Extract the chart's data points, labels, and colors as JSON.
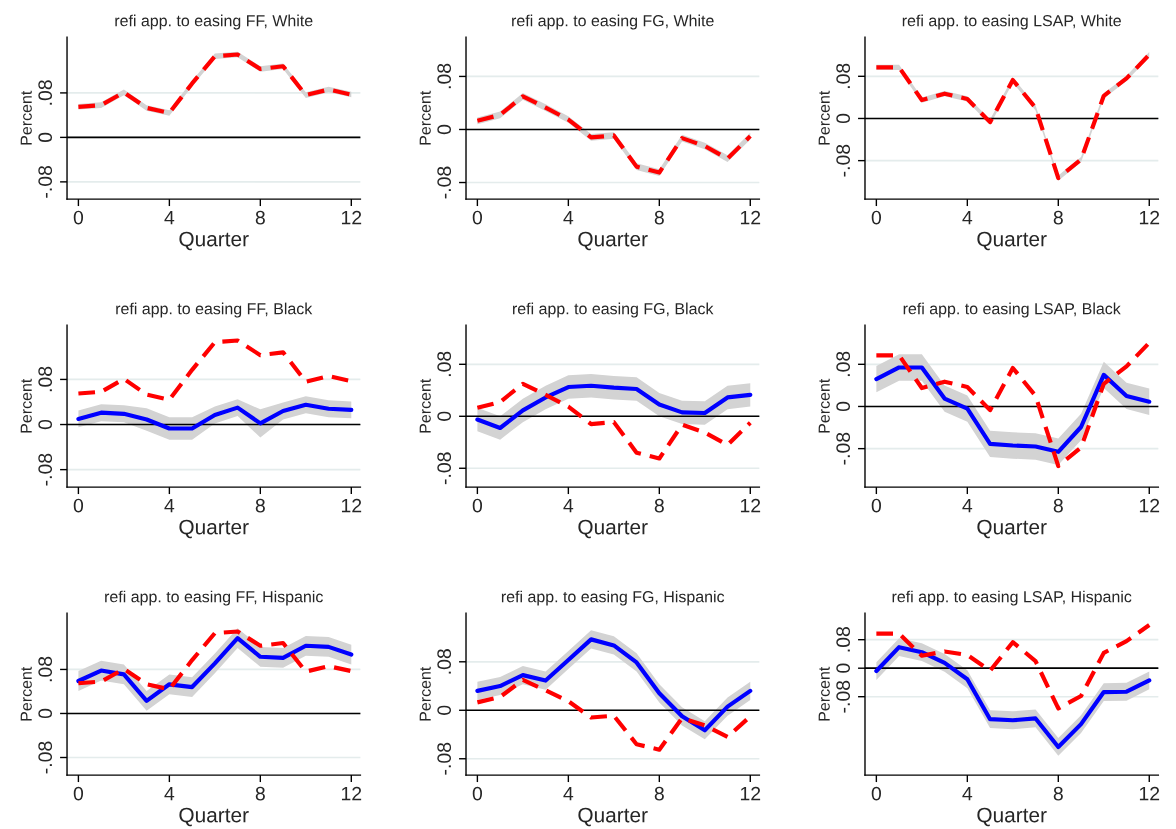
{
  "chart_data": [
    {
      "type": "line",
      "title": "refi app. to easing FF, White",
      "xlabel": "Quarter",
      "ylabel": "Percent",
      "x": [
        0,
        1,
        2,
        3,
        4,
        5,
        6,
        7,
        8,
        9,
        10,
        11,
        12
      ],
      "xlim": [
        -0.5,
        12.4
      ],
      "xticks": [
        0,
        4,
        8,
        12
      ],
      "ylim": [
        -0.111,
        0.18
      ],
      "yticks": [
        {
          "value": -0.08,
          "label": "-.08"
        },
        {
          "value": 0,
          "label": "0"
        },
        {
          "value": 0.08,
          "label": ".08"
        }
      ],
      "grid": "y",
      "legend": false,
      "ref_lines": [
        {
          "axis": "y",
          "value": 0,
          "color": "#000000"
        }
      ],
      "series": [
        {
          "color": "#ff0000",
          "line_style": "dashed",
          "values": [
            0.055,
            0.058,
            0.081,
            0.053,
            0.044,
            0.097,
            0.146,
            0.149,
            0.123,
            0.128,
            0.076,
            0.086,
            0.077
          ],
          "lower": [
            0.05,
            0.053,
            0.076,
            0.048,
            0.039,
            0.092,
            0.141,
            0.144,
            0.118,
            0.123,
            0.071,
            0.081,
            0.072
          ],
          "upper": [
            0.06,
            0.063,
            0.086,
            0.058,
            0.049,
            0.102,
            0.151,
            0.154,
            0.128,
            0.133,
            0.081,
            0.091,
            0.082
          ]
        }
      ]
    },
    {
      "type": "line",
      "title": "refi app. to easing FG, White",
      "xlabel": "Quarter",
      "ylabel": "Percent",
      "x": [
        0,
        1,
        2,
        3,
        4,
        5,
        6,
        7,
        8,
        9,
        10,
        11,
        12
      ],
      "xlim": [
        -0.5,
        12.4
      ],
      "xticks": [
        0,
        4,
        8,
        12
      ],
      "ylim": [
        -0.105,
        0.139
      ],
      "yticks": [
        {
          "value": -0.08,
          "label": "-.08"
        },
        {
          "value": 0,
          "label": "0"
        },
        {
          "value": 0.08,
          "label": ".08"
        }
      ],
      "grid": "y",
      "legend": false,
      "ref_lines": [
        {
          "axis": "y",
          "value": 0,
          "color": "#000000"
        }
      ],
      "series": [
        {
          "color": "#ff0000",
          "line_style": "dashed",
          "values": [
            0.013,
            0.022,
            0.05,
            0.033,
            0.015,
            -0.012,
            -0.009,
            -0.056,
            -0.065,
            -0.013,
            -0.025,
            -0.044,
            -0.01
          ],
          "lower": [
            0.008,
            0.017,
            0.045,
            0.028,
            0.01,
            -0.017,
            -0.014,
            -0.061,
            -0.07,
            -0.018,
            -0.03,
            -0.049,
            -0.015
          ],
          "upper": [
            0.018,
            0.027,
            0.055,
            0.038,
            0.02,
            -0.007,
            -0.004,
            -0.051,
            -0.06,
            -0.008,
            -0.02,
            -0.039,
            -0.005
          ]
        }
      ]
    },
    {
      "type": "line",
      "title": "refi app. to easing LSAP, White",
      "xlabel": "Quarter",
      "ylabel": "Percent",
      "x": [
        0,
        1,
        2,
        3,
        4,
        5,
        6,
        7,
        8,
        9,
        10,
        11,
        12
      ],
      "xlim": [
        -0.5,
        12.4
      ],
      "xticks": [
        0,
        4,
        8,
        12
      ],
      "ylim": [
        -0.153,
        0.154
      ],
      "yticks": [
        {
          "value": -0.08,
          "label": "-.08"
        },
        {
          "value": 0,
          "label": "0"
        },
        {
          "value": 0.08,
          "label": ".08"
        }
      ],
      "grid": "y",
      "legend": false,
      "ref_lines": [
        {
          "axis": "y",
          "value": 0,
          "color": "#000000"
        }
      ],
      "series": [
        {
          "color": "#ff0000",
          "line_style": "dashed",
          "values": [
            0.097,
            0.097,
            0.035,
            0.047,
            0.037,
            -0.007,
            0.073,
            0.02,
            -0.113,
            -0.078,
            0.043,
            0.076,
            0.121
          ],
          "lower": [
            0.092,
            0.092,
            0.03,
            0.042,
            0.032,
            -0.012,
            0.068,
            0.015,
            -0.118,
            -0.083,
            0.038,
            0.071,
            0.116
          ],
          "upper": [
            0.102,
            0.102,
            0.04,
            0.052,
            0.042,
            -0.002,
            0.078,
            0.025,
            -0.108,
            -0.073,
            0.048,
            0.081,
            0.126
          ]
        }
      ]
    },
    {
      "type": "line",
      "title": "refi app. to easing FF, Black",
      "xlabel": "Quarter",
      "ylabel": "Percent",
      "x": [
        0,
        1,
        2,
        3,
        4,
        5,
        6,
        7,
        8,
        9,
        10,
        11,
        12
      ],
      "xlim": [
        -0.5,
        12.4
      ],
      "xticks": [
        0,
        4,
        8,
        12
      ],
      "ylim": [
        -0.111,
        0.176
      ],
      "yticks": [
        {
          "value": -0.08,
          "label": "-.08"
        },
        {
          "value": 0,
          "label": "0"
        },
        {
          "value": 0.08,
          "label": ".08"
        }
      ],
      "grid": "y",
      "legend": false,
      "ref_lines": [
        {
          "axis": "y",
          "value": 0,
          "color": "#000000"
        }
      ],
      "series": [
        {
          "color": "#0000ff",
          "line_style": "solid",
          "values": [
            0.01,
            0.021,
            0.019,
            0.009,
            -0.007,
            -0.007,
            0.017,
            0.03,
            0.002,
            0.024,
            0.035,
            0.028,
            0.026
          ],
          "lower": [
            -0.005,
            0.006,
            0.004,
            -0.011,
            -0.027,
            -0.027,
            0.002,
            0.015,
            -0.023,
            0.009,
            0.02,
            0.013,
            0.011
          ],
          "upper": [
            0.025,
            0.036,
            0.034,
            0.029,
            0.013,
            0.013,
            0.032,
            0.045,
            0.027,
            0.039,
            0.05,
            0.043,
            0.041
          ]
        },
        {
          "color": "#ff0000",
          "line_style": "dashed",
          "values": [
            0.055,
            0.058,
            0.081,
            0.053,
            0.044,
            0.097,
            0.146,
            0.149,
            0.123,
            0.128,
            0.076,
            0.086,
            0.077
          ]
        }
      ]
    },
    {
      "type": "line",
      "title": "refi app. to easing FG, Black",
      "xlabel": "Quarter",
      "ylabel": "Percent",
      "x": [
        0,
        1,
        2,
        3,
        4,
        5,
        6,
        7,
        8,
        9,
        10,
        11,
        12
      ],
      "xlim": [
        -0.5,
        12.4
      ],
      "xticks": [
        0,
        4,
        8,
        12
      ],
      "ylim": [
        -0.109,
        0.14
      ],
      "yticks": [
        {
          "value": -0.08,
          "label": "-.08"
        },
        {
          "value": 0,
          "label": "0"
        },
        {
          "value": 0.08,
          "label": ".08"
        }
      ],
      "grid": "y",
      "legend": false,
      "ref_lines": [
        {
          "axis": "y",
          "value": 0,
          "color": "#000000"
        }
      ],
      "series": [
        {
          "color": "#0000ff",
          "line_style": "solid",
          "values": [
            -0.005,
            -0.018,
            0.009,
            0.029,
            0.045,
            0.047,
            0.044,
            0.042,
            0.018,
            0.006,
            0.005,
            0.029,
            0.033
          ],
          "lower": [
            -0.023,
            -0.036,
            -0.009,
            0.011,
            0.027,
            0.029,
            0.026,
            0.024,
            0.0,
            -0.012,
            -0.013,
            0.011,
            0.015
          ],
          "upper": [
            0.013,
            0.0,
            0.027,
            0.047,
            0.063,
            0.065,
            0.062,
            0.06,
            0.036,
            0.024,
            0.023,
            0.047,
            0.051
          ]
        },
        {
          "color": "#ff0000",
          "line_style": "dashed",
          "values": [
            0.013,
            0.022,
            0.05,
            0.033,
            0.015,
            -0.012,
            -0.009,
            -0.056,
            -0.065,
            -0.013,
            -0.025,
            -0.044,
            -0.01
          ]
        }
      ]
    },
    {
      "type": "line",
      "title": "refi app. to easing LSAP, Black",
      "xlabel": "Quarter",
      "ylabel": "Percent",
      "x": [
        0,
        1,
        2,
        3,
        4,
        5,
        6,
        7,
        8,
        9,
        10,
        11,
        12
      ],
      "xlim": [
        -0.5,
        12.4
      ],
      "xticks": [
        0,
        4,
        8,
        12
      ],
      "ylim": [
        -0.153,
        0.154
      ],
      "yticks": [
        {
          "value": -0.08,
          "label": "-.08"
        },
        {
          "value": 0,
          "label": "0"
        },
        {
          "value": 0.08,
          "label": ".08"
        }
      ],
      "grid": "y",
      "legend": false,
      "ref_lines": [
        {
          "axis": "y",
          "value": 0,
          "color": "#000000"
        }
      ],
      "series": [
        {
          "color": "#0000ff",
          "line_style": "solid",
          "values": [
            0.052,
            0.074,
            0.074,
            0.015,
            -0.004,
            -0.071,
            -0.074,
            -0.076,
            -0.086,
            -0.039,
            0.06,
            0.02,
            0.009
          ],
          "lower": [
            0.027,
            0.049,
            0.049,
            -0.01,
            -0.029,
            -0.096,
            -0.099,
            -0.101,
            -0.111,
            -0.064,
            0.035,
            -0.005,
            -0.016
          ],
          "upper": [
            0.077,
            0.099,
            0.099,
            0.04,
            0.021,
            -0.046,
            -0.049,
            -0.051,
            -0.061,
            -0.014,
            0.085,
            0.045,
            0.034
          ]
        },
        {
          "color": "#ff0000",
          "line_style": "dashed",
          "values": [
            0.097,
            0.097,
            0.035,
            0.047,
            0.037,
            -0.007,
            0.073,
            0.02,
            -0.113,
            -0.078,
            0.043,
            0.076,
            0.121
          ]
        }
      ]
    },
    {
      "type": "line",
      "title": "refi app. to easing FF, Hispanic",
      "xlabel": "Quarter",
      "ylabel": "Percent",
      "x": [
        0,
        1,
        2,
        3,
        4,
        5,
        6,
        7,
        8,
        9,
        10,
        11,
        12
      ],
      "xlim": [
        -0.5,
        12.4
      ],
      "xticks": [
        0,
        4,
        8,
        12
      ],
      "ylim": [
        -0.112,
        0.182
      ],
      "yticks": [
        {
          "value": -0.08,
          "label": "-.08"
        },
        {
          "value": 0,
          "label": "0"
        },
        {
          "value": 0.08,
          "label": ".08"
        }
      ],
      "grid": "y",
      "legend": false,
      "ref_lines": [
        {
          "axis": "y",
          "value": 0,
          "color": "#000000"
        }
      ],
      "series": [
        {
          "color": "#0000ff",
          "line_style": "solid",
          "values": [
            0.059,
            0.078,
            0.071,
            0.023,
            0.053,
            0.048,
            0.091,
            0.137,
            0.103,
            0.101,
            0.123,
            0.121,
            0.107
          ],
          "lower": [
            0.041,
            0.06,
            0.053,
            0.005,
            0.035,
            0.03,
            0.073,
            0.119,
            0.085,
            0.083,
            0.105,
            0.103,
            0.089
          ],
          "upper": [
            0.077,
            0.096,
            0.089,
            0.041,
            0.071,
            0.066,
            0.109,
            0.155,
            0.121,
            0.119,
            0.141,
            0.139,
            0.125
          ]
        },
        {
          "color": "#ff0000",
          "line_style": "dashed",
          "values": [
            0.055,
            0.058,
            0.081,
            0.053,
            0.044,
            0.097,
            0.146,
            0.149,
            0.123,
            0.128,
            0.076,
            0.086,
            0.077
          ]
        }
      ]
    },
    {
      "type": "line",
      "title": "refi app. to easing FG, Hispanic",
      "xlabel": "Quarter",
      "ylabel": "Percent",
      "x": [
        0,
        1,
        2,
        3,
        4,
        5,
        6,
        7,
        8,
        9,
        10,
        11,
        12
      ],
      "xlim": [
        -0.5,
        12.4
      ],
      "xticks": [
        0,
        4,
        8,
        12
      ],
      "ylim": [
        -0.107,
        0.16
      ],
      "yticks": [
        {
          "value": -0.08,
          "label": "-.08"
        },
        {
          "value": 0,
          "label": "0"
        },
        {
          "value": 0.08,
          "label": ".08"
        }
      ],
      "grid": "y",
      "legend": false,
      "ref_lines": [
        {
          "axis": "y",
          "value": 0,
          "color": "#000000"
        }
      ],
      "series": [
        {
          "color": "#0000ff",
          "line_style": "solid",
          "values": [
            0.032,
            0.04,
            0.058,
            0.049,
            0.083,
            0.117,
            0.107,
            0.079,
            0.028,
            -0.01,
            -0.033,
            0.006,
            0.032
          ],
          "lower": [
            0.017,
            0.025,
            0.043,
            0.034,
            0.068,
            0.102,
            0.092,
            0.064,
            0.013,
            -0.025,
            -0.048,
            -0.009,
            0.017
          ],
          "upper": [
            0.047,
            0.055,
            0.073,
            0.064,
            0.098,
            0.132,
            0.122,
            0.094,
            0.043,
            0.005,
            -0.018,
            0.021,
            0.047
          ]
        },
        {
          "color": "#ff0000",
          "line_style": "dashed",
          "values": [
            0.013,
            0.022,
            0.05,
            0.033,
            0.015,
            -0.012,
            -0.009,
            -0.056,
            -0.065,
            -0.013,
            -0.025,
            -0.044,
            -0.01
          ]
        }
      ]
    },
    {
      "type": "line",
      "title": "refi app. to easing LSAP, Hispanic",
      "xlabel": "Quarter",
      "ylabel": "Percent",
      "x": [
        0,
        1,
        2,
        3,
        4,
        5,
        6,
        7,
        8,
        9,
        10,
        11,
        12
      ],
      "xlim": [
        -0.5,
        12.4
      ],
      "xticks": [
        0,
        4,
        8,
        12
      ],
      "ylim": [
        -0.3,
        0.154
      ],
      "yticks": [
        {
          "value": -0.08,
          "label": "-.08"
        },
        {
          "value": 0,
          "label": "0"
        },
        {
          "value": 0.08,
          "label": ".08"
        }
      ],
      "grid": "y",
      "legend": false,
      "ref_lines": [
        {
          "axis": "y",
          "value": 0,
          "color": "#000000"
        }
      ],
      "series": [
        {
          "color": "#0000ff",
          "line_style": "solid",
          "values": [
            -0.008,
            0.059,
            0.045,
            0.015,
            -0.031,
            -0.143,
            -0.146,
            -0.141,
            -0.221,
            -0.157,
            -0.067,
            -0.066,
            -0.034
          ],
          "lower": [
            -0.033,
            0.034,
            0.02,
            -0.01,
            -0.056,
            -0.168,
            -0.171,
            -0.166,
            -0.246,
            -0.182,
            -0.092,
            -0.091,
            -0.059
          ],
          "upper": [
            0.017,
            0.084,
            0.07,
            0.04,
            -0.006,
            -0.118,
            -0.121,
            -0.116,
            -0.196,
            -0.132,
            -0.042,
            -0.041,
            -0.009
          ]
        },
        {
          "color": "#ff0000",
          "line_style": "dashed",
          "values": [
            0.097,
            0.097,
            0.035,
            0.047,
            0.037,
            -0.007,
            0.073,
            0.02,
            -0.113,
            -0.078,
            0.043,
            0.076,
            0.121
          ]
        }
      ]
    }
  ]
}
